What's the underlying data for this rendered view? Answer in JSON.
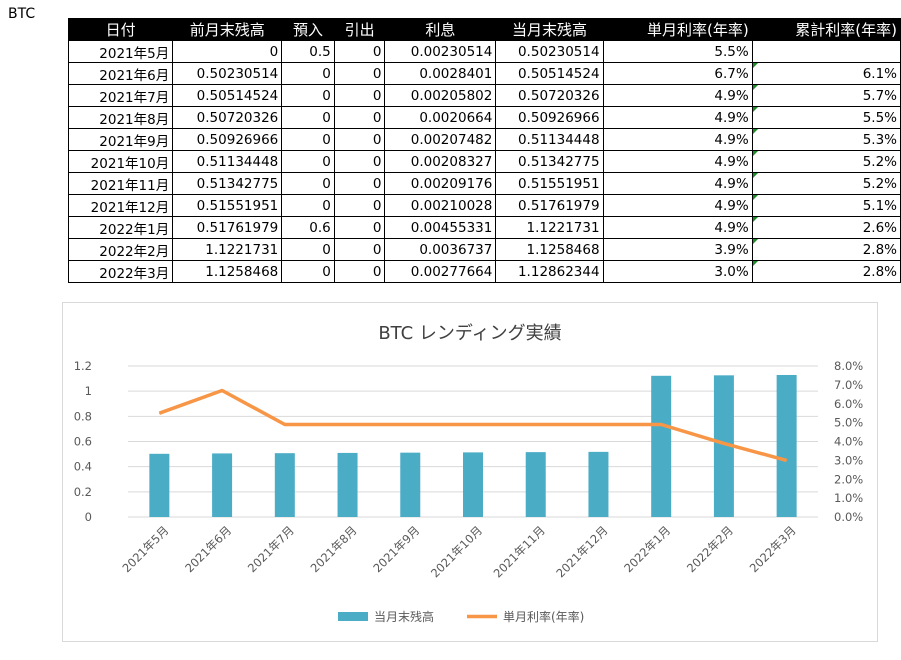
{
  "sheet": {
    "name": "BTC"
  },
  "table": {
    "headers": [
      "日付",
      "前月末残高",
      "預入",
      "引出",
      "利息",
      "当月末残高",
      "単月利率(年率)",
      "累計利率(年率)"
    ],
    "rows": [
      [
        "2021年5月",
        "0",
        "0.5",
        "0",
        "0.00230514",
        "0.50230514",
        "5.5%",
        ""
      ],
      [
        "2021年6月",
        "0.50230514",
        "0",
        "0",
        "0.0028401",
        "0.50514524",
        "6.7%",
        "6.1%"
      ],
      [
        "2021年7月",
        "0.50514524",
        "0",
        "0",
        "0.00205802",
        "0.50720326",
        "4.9%",
        "5.7%"
      ],
      [
        "2021年8月",
        "0.50720326",
        "0",
        "0",
        "0.0020664",
        "0.50926966",
        "4.9%",
        "5.5%"
      ],
      [
        "2021年9月",
        "0.50926966",
        "0",
        "0",
        "0.00207482",
        "0.51134448",
        "4.9%",
        "5.3%"
      ],
      [
        "2021年10月",
        "0.51134448",
        "0",
        "0",
        "0.00208327",
        "0.51342775",
        "4.9%",
        "5.2%"
      ],
      [
        "2021年11月",
        "0.51342775",
        "0",
        "0",
        "0.00209176",
        "0.51551951",
        "4.9%",
        "5.2%"
      ],
      [
        "2021年12月",
        "0.51551951",
        "0",
        "0",
        "0.00210028",
        "0.51761979",
        "4.9%",
        "5.1%"
      ],
      [
        "2022年1月",
        "0.51761979",
        "0.6",
        "0",
        "0.00455331",
        "1.1221731",
        "4.9%",
        "2.6%"
      ],
      [
        "2022年2月",
        "1.1221731",
        "0",
        "0",
        "0.0036737",
        "1.1258468",
        "3.9%",
        "2.8%"
      ],
      [
        "2022年3月",
        "1.1258468",
        "0",
        "0",
        "0.00277664",
        "1.12862344",
        "3.0%",
        "2.8%"
      ]
    ],
    "flag_color": "#1e8a2a"
  },
  "chart_data": {
    "type": "bar",
    "title": "BTC レンディング実績",
    "categories": [
      "2021年5月",
      "2021年6月",
      "2021年7月",
      "2021年8月",
      "2021年9月",
      "2021年10月",
      "2021年11月",
      "2021年12月",
      "2022年1月",
      "2022年2月",
      "2022年3月"
    ],
    "series": [
      {
        "name": "当月末残高",
        "type": "bar",
        "axis": "left",
        "color": "#4bacc6",
        "values": [
          0.50230514,
          0.50514524,
          0.50720326,
          0.50926966,
          0.51134448,
          0.51342775,
          0.51551951,
          0.51761979,
          1.1221731,
          1.1258468,
          1.12862344
        ]
      },
      {
        "name": "単月利率(年率)",
        "type": "line",
        "axis": "right",
        "color": "#f79646",
        "values": [
          0.055,
          0.067,
          0.049,
          0.049,
          0.049,
          0.049,
          0.049,
          0.049,
          0.049,
          0.039,
          0.03
        ]
      }
    ],
    "y_left": {
      "min": 0,
      "max": 1.2,
      "ticks": [
        "0",
        "0.2",
        "0.4",
        "0.6",
        "0.8",
        "1",
        "1.2"
      ]
    },
    "y_right": {
      "min": 0,
      "max": 0.08,
      "ticks": [
        "0.0%",
        "1.0%",
        "2.0%",
        "3.0%",
        "4.0%",
        "5.0%",
        "6.0%",
        "7.0%",
        "8.0%"
      ]
    },
    "grid": true,
    "legend": "bottom"
  }
}
